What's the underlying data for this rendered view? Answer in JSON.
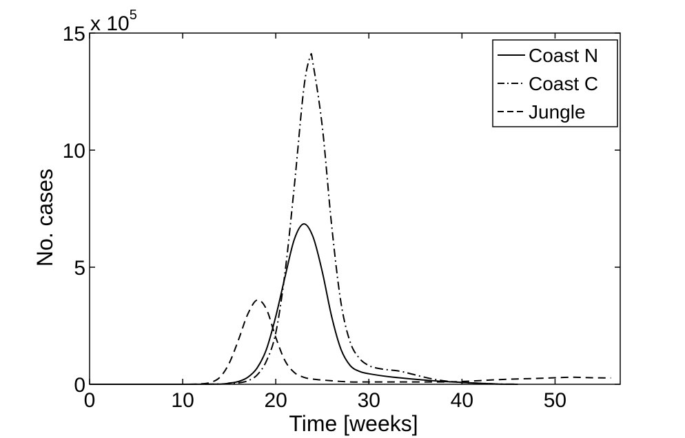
{
  "chart_data": {
    "type": "line",
    "title": "",
    "xlabel": "Time [weeks]",
    "ylabel": "No. cases",
    "xlim": [
      0,
      57
    ],
    "ylim": [
      0,
      15
    ],
    "y_multiplier": {
      "base": "x 10",
      "exponent": "5"
    },
    "xticks": [
      0,
      10,
      20,
      30,
      40,
      50
    ],
    "yticks": [
      0,
      5,
      10,
      15
    ],
    "grid": false,
    "legend_position": "top-right",
    "series": [
      {
        "name": "Coast N",
        "style": "solid",
        "color": "#000000",
        "x": [
          0,
          10,
          14,
          15,
          16,
          17,
          18,
          19,
          20,
          21,
          22,
          23,
          24,
          25,
          26,
          27,
          28,
          29,
          30,
          32,
          34,
          36,
          38,
          40,
          42,
          44,
          46
        ],
        "y": [
          0,
          0,
          0.01,
          0.05,
          0.12,
          0.3,
          0.7,
          1.5,
          2.9,
          4.6,
          6.2,
          6.85,
          6.3,
          4.8,
          2.9,
          1.5,
          0.8,
          0.55,
          0.45,
          0.33,
          0.25,
          0.18,
          0.12,
          0.08,
          0.04,
          0.01,
          0
        ]
      },
      {
        "name": "Coast C",
        "style": "dashdot",
        "color": "#000000",
        "x": [
          0,
          10,
          15,
          16,
          17,
          18,
          19,
          20,
          21,
          22,
          23,
          23.7,
          24,
          25,
          26,
          27,
          28,
          29,
          30,
          31,
          32,
          33,
          34,
          36,
          38,
          40,
          42,
          44,
          46
        ],
        "y": [
          0,
          0,
          0.02,
          0.06,
          0.15,
          0.4,
          1.0,
          2.2,
          4.8,
          8.5,
          12.6,
          14.0,
          13.7,
          11.0,
          6.8,
          3.5,
          1.8,
          1.1,
          0.8,
          0.68,
          0.62,
          0.58,
          0.5,
          0.3,
          0.15,
          0.08,
          0.04,
          0.01,
          0
        ]
      },
      {
        "name": "Jungle",
        "style": "dashed",
        "color": "#000000",
        "x": [
          0,
          10,
          12,
          13,
          14,
          15,
          16,
          17,
          18,
          19,
          20,
          21,
          22,
          23,
          24,
          26,
          28,
          30,
          34,
          38,
          40,
          42,
          44,
          46,
          48,
          50,
          52,
          54,
          56
        ],
        "y": [
          0,
          0,
          0.02,
          0.08,
          0.3,
          0.9,
          1.9,
          3.0,
          3.6,
          3.2,
          2.0,
          1.0,
          0.5,
          0.3,
          0.22,
          0.15,
          0.1,
          0.1,
          0.1,
          0.1,
          0.12,
          0.16,
          0.2,
          0.23,
          0.25,
          0.28,
          0.3,
          0.28,
          0.27
        ]
      }
    ]
  }
}
